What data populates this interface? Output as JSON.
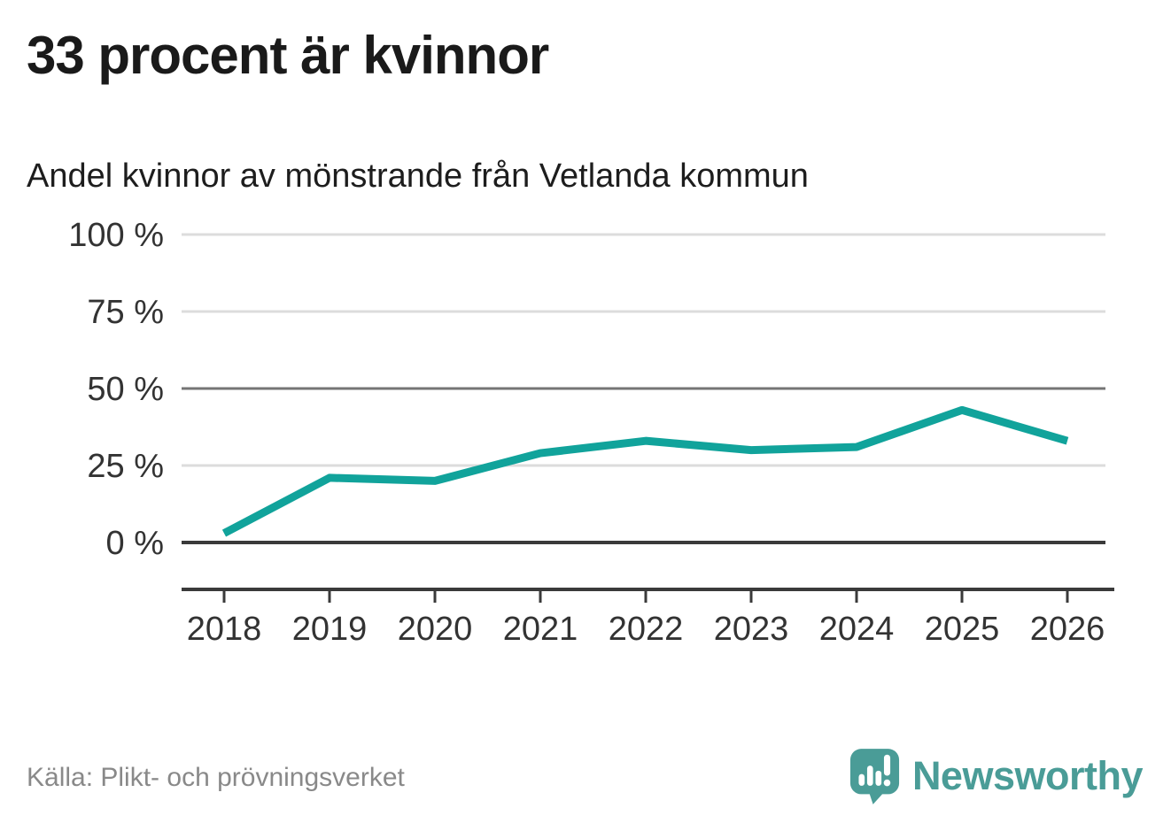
{
  "header": {
    "title": "33 procent är kvinnor",
    "subtitle": "Andel kvinnor av mönstrande från Vetlanda kommun"
  },
  "chart_data": {
    "type": "line",
    "title": "33 procent är kvinnor",
    "subtitle": "Andel kvinnor av mönstrande från Vetlanda kommun",
    "categories": [
      "2018",
      "2019",
      "2020",
      "2021",
      "2022",
      "2023",
      "2024",
      "2025",
      "2026"
    ],
    "series": [
      {
        "name": "Andel kvinnor av mönstrande",
        "values": [
          3,
          21,
          20,
          29,
          33,
          30,
          31,
          43,
          33
        ]
      }
    ],
    "unit": "%",
    "xlabel": "",
    "ylabel": "",
    "ylim": [
      0,
      100
    ],
    "yticks": [
      0,
      25,
      50,
      75,
      100
    ],
    "ytick_labels": [
      "0 %",
      "25 %",
      "50 %",
      "75 %",
      "100 %"
    ],
    "grid": "horizontal",
    "legend": "none",
    "emphasized_gridline": 50,
    "baseline_gridline": 0
  },
  "footer": {
    "source": "Källa: Plikt- och prövningsverket",
    "brand": "Newsworthy"
  },
  "colors": {
    "line": "#11a39b",
    "grid_light": "#dcdcdc",
    "grid_mid": "#757575",
    "axis_dark": "#3a3a3a",
    "tick_text": "#333333",
    "source_text": "#898989",
    "brand_teal": "#4a9c97"
  }
}
